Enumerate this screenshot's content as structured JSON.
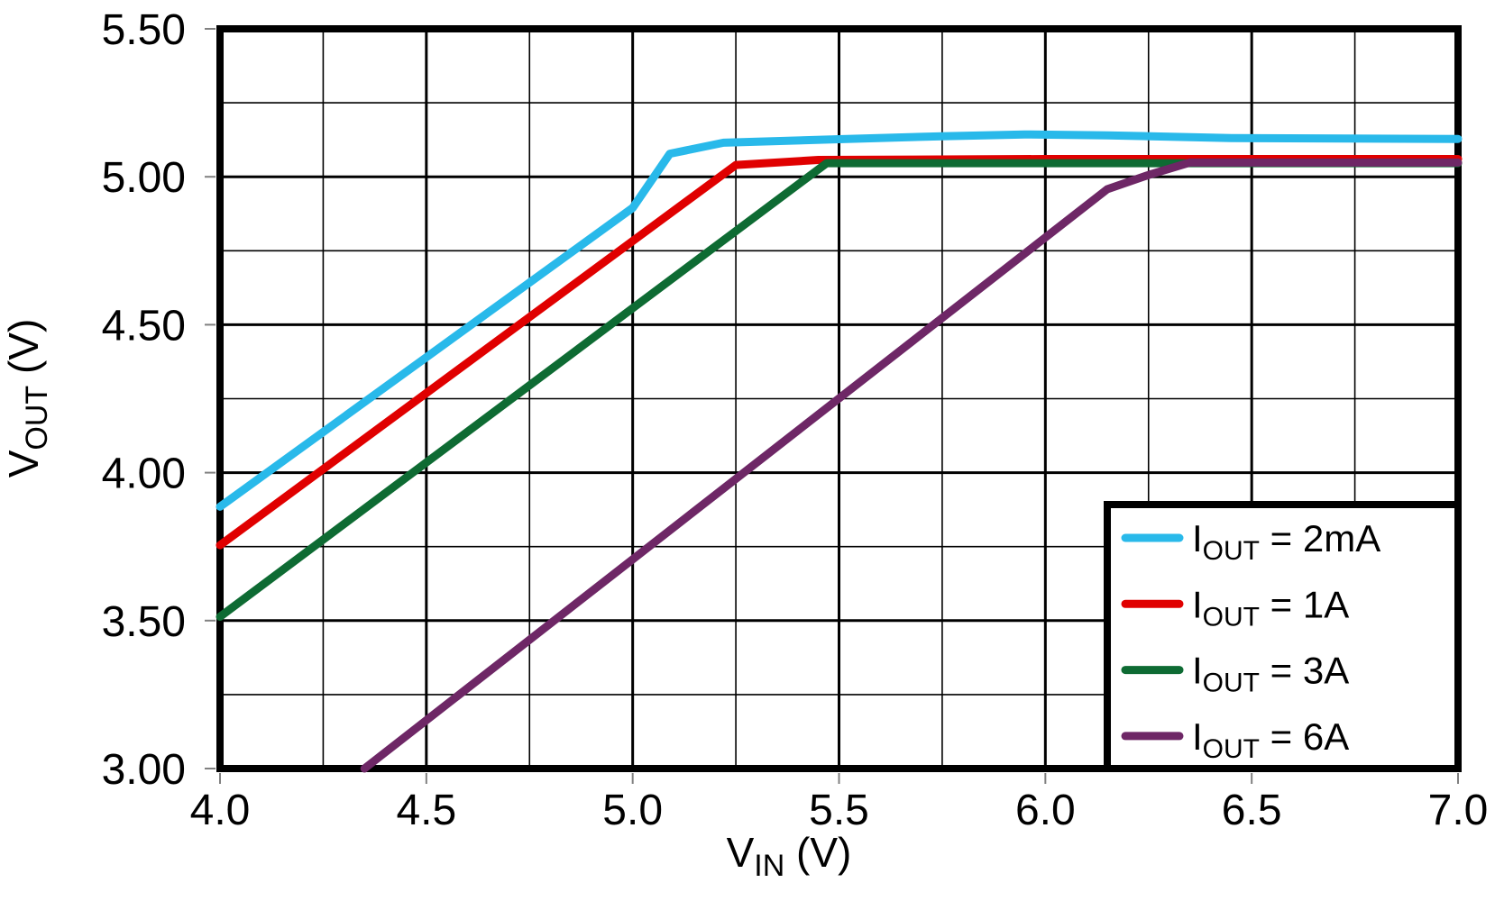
{
  "chart_data": {
    "type": "line",
    "xlabel": {
      "main": "V",
      "sub": "IN",
      "rest": " (V)"
    },
    "ylabel": {
      "main": "V",
      "sub": "OUT",
      "rest": " (V)"
    },
    "x_range": [
      4.0,
      7.0
    ],
    "y_range": [
      3.0,
      5.5
    ],
    "x_major_step": 0.5,
    "x_minor_step": 0.25,
    "y_major_step": 0.5,
    "y_minor_step": 0.25,
    "x_ticks": [
      "4.0",
      "4.5",
      "5.0",
      "5.5",
      "6.0",
      "6.5",
      "7.0"
    ],
    "y_ticks": [
      "3.00",
      "3.50",
      "4.00",
      "4.50",
      "5.00",
      "5.50"
    ],
    "grid": true,
    "legend_position": "bottom-right",
    "series": [
      {
        "name": "IOUT = 2mA",
        "label": {
          "main": "I",
          "sub": "OUT",
          "rest": " = 2mA"
        },
        "color": "#29B9EA",
        "points": [
          [
            4.0,
            3.885
          ],
          [
            5.0,
            4.895
          ],
          [
            5.09,
            5.078
          ],
          [
            5.22,
            5.115
          ],
          [
            5.5,
            5.127
          ],
          [
            5.75,
            5.137
          ],
          [
            5.95,
            5.143
          ],
          [
            6.15,
            5.14
          ],
          [
            6.45,
            5.131
          ],
          [
            7.0,
            5.128
          ]
        ]
      },
      {
        "name": "IOUT = 1A",
        "label": {
          "main": "I",
          "sub": "OUT",
          "rest": " = 1A"
        },
        "color": "#E00000",
        "points": [
          [
            4.0,
            3.755
          ],
          [
            5.25,
            5.04
          ],
          [
            5.45,
            5.057
          ],
          [
            6.0,
            5.06
          ],
          [
            7.0,
            5.06
          ]
        ]
      },
      {
        "name": "IOUT = 3A",
        "label": {
          "main": "I",
          "sub": "OUT",
          "rest": " = 3A"
        },
        "color": "#0E6B33",
        "points": [
          [
            4.0,
            3.513
          ],
          [
            5.47,
            5.046
          ],
          [
            7.0,
            5.046
          ]
        ]
      },
      {
        "name": "IOUT = 6A",
        "label": {
          "main": "I",
          "sub": "OUT",
          "rest": " = 6A"
        },
        "color": "#6E2766",
        "points": [
          [
            4.35,
            3.0
          ],
          [
            6.15,
            4.958
          ],
          [
            6.25,
            5.006
          ],
          [
            6.35,
            5.048
          ],
          [
            7.0,
            5.048
          ]
        ]
      }
    ],
    "colors": {
      "background": "#FFFFFF",
      "grid_major": "#000000",
      "grid_minor": "#000000",
      "frame": "#000000",
      "tick": "#808080",
      "text": "#000000",
      "legend_background": "#FFFFFF",
      "legend_border": "#000000"
    }
  }
}
